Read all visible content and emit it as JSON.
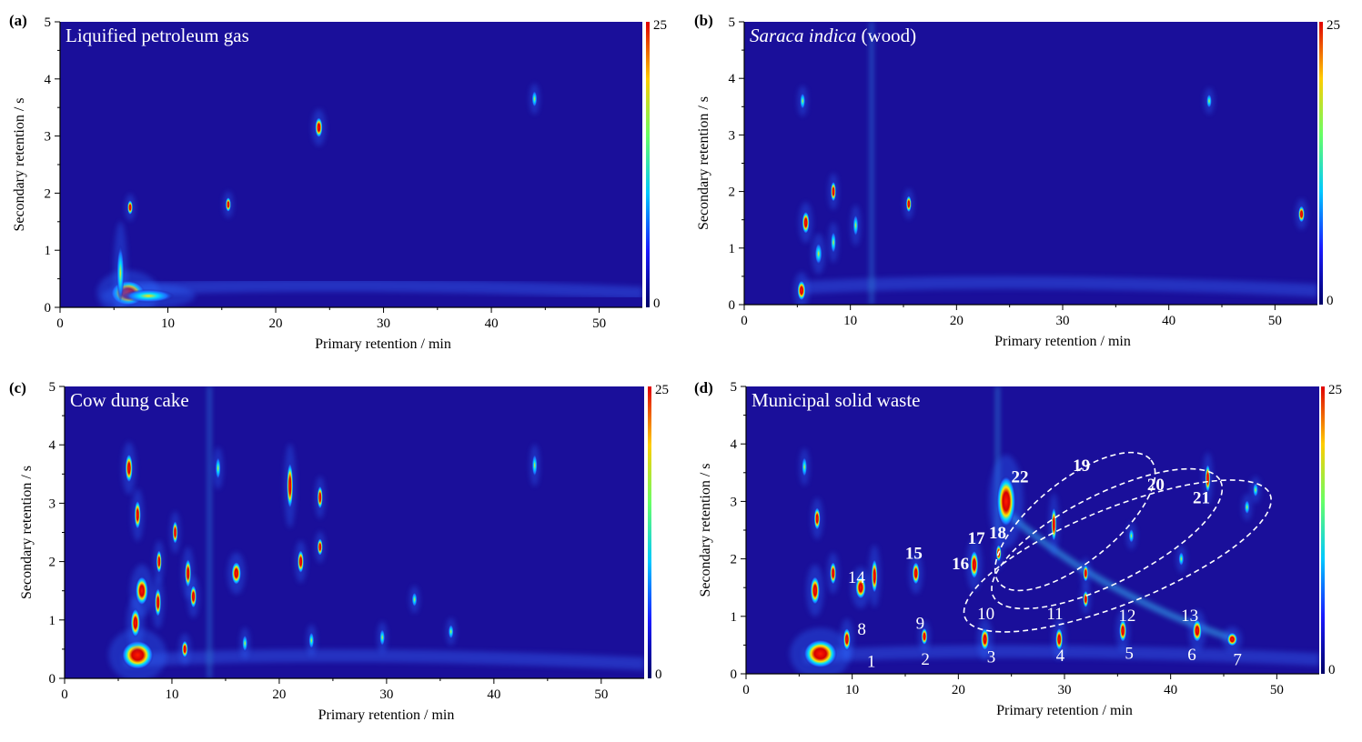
{
  "chart_data": [
    {
      "type": "heatmap",
      "panel_letter": "(a)",
      "title": "Liquified petroleum gas",
      "title_italic_part": "",
      "title_rest": "",
      "xlabel": "Primary retention / min",
      "ylabel": "Secondary retention / s",
      "xlim": [
        0,
        54
      ],
      "ylim": [
        0,
        5
      ],
      "x_ticks": [
        "0",
        "10",
        "20",
        "30",
        "40",
        "50"
      ],
      "y_ticks": [
        "0",
        "1",
        "2",
        "3",
        "4",
        "5"
      ],
      "colorscale": {
        "min": "0",
        "max": "25"
      },
      "background_color": "#1a0f9a",
      "peaks": [
        {
          "x": 6.3,
          "y": 0.25,
          "w": 1.6,
          "h": 0.22,
          "level": 1.0
        },
        {
          "x": 8.2,
          "y": 0.2,
          "w": 2.4,
          "h": 0.12,
          "level": 0.6
        },
        {
          "x": 5.6,
          "y": 0.6,
          "w": 0.35,
          "h": 0.5,
          "level": 0.5
        },
        {
          "x": 6.5,
          "y": 1.75,
          "w": 0.25,
          "h": 0.13,
          "level": 0.8
        },
        {
          "x": 15.6,
          "y": 1.8,
          "w": 0.22,
          "h": 0.13,
          "level": 0.8
        },
        {
          "x": 24.0,
          "y": 3.15,
          "w": 0.35,
          "h": 0.18,
          "level": 0.8
        },
        {
          "x": 44.0,
          "y": 3.65,
          "w": 0.25,
          "h": 0.15,
          "level": 0.6
        }
      ],
      "labels": []
    },
    {
      "type": "heatmap",
      "panel_letter": "(b)",
      "title": "",
      "title_italic_part": "Saraca indica",
      "title_rest": " (wood)",
      "xlabel": "Primary retention / min",
      "ylabel": "Secondary retention / s",
      "xlim": [
        0,
        54
      ],
      "ylim": [
        0,
        5
      ],
      "x_ticks": [
        "0",
        "10",
        "20",
        "30",
        "40",
        "50"
      ],
      "y_ticks": [
        "0",
        "1",
        "2",
        "3",
        "4",
        "5"
      ],
      "colorscale": {
        "min": "0",
        "max": "25"
      },
      "background_color": "#1a0f9a",
      "peaks": [
        {
          "x": 5.4,
          "y": 0.25,
          "w": 0.4,
          "h": 0.18,
          "level": 1.0
        },
        {
          "x": 5.8,
          "y": 1.45,
          "w": 0.35,
          "h": 0.2,
          "level": 0.9
        },
        {
          "x": 5.5,
          "y": 3.6,
          "w": 0.25,
          "h": 0.15,
          "level": 0.6
        },
        {
          "x": 7.0,
          "y": 0.9,
          "w": 0.35,
          "h": 0.2,
          "level": 0.7
        },
        {
          "x": 8.4,
          "y": 2.0,
          "w": 0.25,
          "h": 0.18,
          "level": 0.8
        },
        {
          "x": 8.4,
          "y": 1.1,
          "w": 0.25,
          "h": 0.2,
          "level": 0.7
        },
        {
          "x": 10.5,
          "y": 1.4,
          "w": 0.25,
          "h": 0.2,
          "level": 0.7
        },
        {
          "x": 15.5,
          "y": 1.78,
          "w": 0.22,
          "h": 0.15,
          "level": 0.8
        },
        {
          "x": 43.8,
          "y": 3.6,
          "w": 0.22,
          "h": 0.13,
          "level": 0.5
        },
        {
          "x": 52.5,
          "y": 1.6,
          "w": 0.3,
          "h": 0.15,
          "level": 0.8
        }
      ],
      "labels": []
    },
    {
      "type": "heatmap",
      "panel_letter": "(c)",
      "title": "Cow dung cake",
      "title_italic_part": "",
      "title_rest": "",
      "xlabel": "Primary retention / min",
      "ylabel": "Secondary retention / s",
      "xlim": [
        0,
        54
      ],
      "ylim": [
        0,
        5
      ],
      "x_ticks": [
        "0",
        "10",
        "20",
        "30",
        "40",
        "50"
      ],
      "y_ticks": [
        "0",
        "1",
        "2",
        "3",
        "4",
        "5"
      ],
      "colorscale": {
        "min": "0",
        "max": "25"
      },
      "background_color": "#1a0f9a",
      "peaks": [
        {
          "x": 6.8,
          "y": 0.4,
          "w": 1.5,
          "h": 0.25,
          "level": 1.0
        },
        {
          "x": 6.0,
          "y": 3.6,
          "w": 0.35,
          "h": 0.25,
          "level": 0.9
        },
        {
          "x": 6.8,
          "y": 2.8,
          "w": 0.3,
          "h": 0.25,
          "level": 0.9
        },
        {
          "x": 7.2,
          "y": 1.5,
          "w": 0.6,
          "h": 0.25,
          "level": 0.9
        },
        {
          "x": 6.6,
          "y": 0.95,
          "w": 0.45,
          "h": 0.25,
          "level": 0.9
        },
        {
          "x": 8.7,
          "y": 1.3,
          "w": 0.3,
          "h": 0.25,
          "level": 0.9
        },
        {
          "x": 8.8,
          "y": 2.0,
          "w": 0.25,
          "h": 0.2,
          "level": 0.8
        },
        {
          "x": 10.3,
          "y": 2.5,
          "w": 0.25,
          "h": 0.2,
          "level": 0.8
        },
        {
          "x": 11.5,
          "y": 1.8,
          "w": 0.3,
          "h": 0.25,
          "level": 0.9
        },
        {
          "x": 12.0,
          "y": 1.4,
          "w": 0.3,
          "h": 0.2,
          "level": 0.8
        },
        {
          "x": 11.2,
          "y": 0.5,
          "w": 0.3,
          "h": 0.15,
          "level": 0.8
        },
        {
          "x": 16.0,
          "y": 1.8,
          "w": 0.45,
          "h": 0.2,
          "level": 0.9
        },
        {
          "x": 14.3,
          "y": 3.6,
          "w": 0.22,
          "h": 0.2,
          "level": 0.7
        },
        {
          "x": 21.0,
          "y": 3.3,
          "w": 0.3,
          "h": 0.4,
          "level": 0.8
        },
        {
          "x": 22.0,
          "y": 2.0,
          "w": 0.3,
          "h": 0.2,
          "level": 0.8
        },
        {
          "x": 23.8,
          "y": 3.1,
          "w": 0.22,
          "h": 0.2,
          "level": 0.8
        },
        {
          "x": 23.8,
          "y": 2.25,
          "w": 0.2,
          "h": 0.15,
          "level": 0.8
        },
        {
          "x": 16.8,
          "y": 0.6,
          "w": 0.25,
          "h": 0.15,
          "level": 0.7
        },
        {
          "x": 23.0,
          "y": 0.65,
          "w": 0.25,
          "h": 0.15,
          "level": 0.7
        },
        {
          "x": 29.6,
          "y": 0.7,
          "w": 0.2,
          "h": 0.15,
          "level": 0.7
        },
        {
          "x": 32.6,
          "y": 1.35,
          "w": 0.2,
          "h": 0.13,
          "level": 0.7
        },
        {
          "x": 36.0,
          "y": 0.8,
          "w": 0.2,
          "h": 0.13,
          "level": 0.7
        },
        {
          "x": 43.8,
          "y": 3.65,
          "w": 0.2,
          "h": 0.2,
          "level": 0.7
        }
      ],
      "labels": []
    },
    {
      "type": "heatmap",
      "panel_letter": "(d)",
      "title": "Municipal solid waste",
      "title_italic_part": "",
      "title_rest": "",
      "xlabel": "Primary retention / min",
      "ylabel": "Secondary retention / s",
      "xlim": [
        0,
        54
      ],
      "ylim": [
        0,
        5
      ],
      "x_ticks": [
        "0",
        "10",
        "20",
        "30",
        "40",
        "50"
      ],
      "y_ticks": [
        "0",
        "1",
        "2",
        "3",
        "4",
        "5"
      ],
      "colorscale": {
        "min": "0",
        "max": "25"
      },
      "background_color": "#1a0f9a",
      "peaks": [
        {
          "x": 7.0,
          "y": 0.35,
          "w": 1.6,
          "h": 0.25,
          "level": 1.0
        },
        {
          "x": 6.5,
          "y": 1.45,
          "w": 0.45,
          "h": 0.25,
          "level": 0.9
        },
        {
          "x": 6.7,
          "y": 2.7,
          "w": 0.3,
          "h": 0.2,
          "level": 0.9
        },
        {
          "x": 5.5,
          "y": 3.6,
          "w": 0.25,
          "h": 0.18,
          "level": 0.7
        },
        {
          "x": 8.2,
          "y": 1.75,
          "w": 0.3,
          "h": 0.2,
          "level": 0.9
        },
        {
          "x": 9.5,
          "y": 0.6,
          "w": 0.35,
          "h": 0.2,
          "level": 0.9
        },
        {
          "x": 10.8,
          "y": 1.5,
          "w": 0.5,
          "h": 0.2,
          "level": 0.9
        },
        {
          "x": 12.1,
          "y": 1.7,
          "w": 0.3,
          "h": 0.3,
          "level": 0.9
        },
        {
          "x": 16.0,
          "y": 1.75,
          "w": 0.35,
          "h": 0.2,
          "level": 0.9
        },
        {
          "x": 16.8,
          "y": 0.65,
          "w": 0.3,
          "h": 0.15,
          "level": 0.8
        },
        {
          "x": 21.5,
          "y": 1.9,
          "w": 0.4,
          "h": 0.25,
          "level": 0.9
        },
        {
          "x": 24.5,
          "y": 3.0,
          "w": 0.9,
          "h": 0.45,
          "level": 1.0
        },
        {
          "x": 23.8,
          "y": 2.1,
          "w": 0.25,
          "h": 0.15,
          "level": 0.8
        },
        {
          "x": 22.5,
          "y": 0.6,
          "w": 0.4,
          "h": 0.2,
          "level": 0.9
        },
        {
          "x": 29.5,
          "y": 0.6,
          "w": 0.35,
          "h": 0.2,
          "level": 0.9
        },
        {
          "x": 29.0,
          "y": 2.6,
          "w": 0.2,
          "h": 0.3,
          "level": 0.9
        },
        {
          "x": 32.0,
          "y": 1.75,
          "w": 0.22,
          "h": 0.15,
          "level": 0.8
        },
        {
          "x": 32.0,
          "y": 1.3,
          "w": 0.2,
          "h": 0.15,
          "level": 0.8
        },
        {
          "x": 35.5,
          "y": 0.75,
          "w": 0.35,
          "h": 0.2,
          "level": 0.8
        },
        {
          "x": 36.3,
          "y": 2.4,
          "w": 0.2,
          "h": 0.13,
          "level": 0.7
        },
        {
          "x": 42.5,
          "y": 0.75,
          "w": 0.45,
          "h": 0.2,
          "level": 0.9
        },
        {
          "x": 45.8,
          "y": 0.6,
          "w": 0.5,
          "h": 0.12,
          "level": 1.0
        },
        {
          "x": 43.5,
          "y": 3.4,
          "w": 0.22,
          "h": 0.25,
          "level": 0.8
        },
        {
          "x": 41.0,
          "y": 2.0,
          "w": 0.2,
          "h": 0.13,
          "level": 0.7
        },
        {
          "x": 48.0,
          "y": 3.2,
          "w": 0.2,
          "h": 0.13,
          "level": 0.7
        },
        {
          "x": 47.2,
          "y": 2.9,
          "w": 0.2,
          "h": 0.13,
          "level": 0.7
        }
      ],
      "labels": [
        {
          "text": "1",
          "x": 11.8,
          "y": 0.12,
          "bold": false
        },
        {
          "text": "2",
          "x": 16.9,
          "y": 0.16,
          "bold": false
        },
        {
          "text": "3",
          "x": 23.1,
          "y": 0.2,
          "bold": false
        },
        {
          "text": "4",
          "x": 29.6,
          "y": 0.22,
          "bold": false
        },
        {
          "text": "5",
          "x": 36.1,
          "y": 0.26,
          "bold": false
        },
        {
          "text": "6",
          "x": 42.0,
          "y": 0.24,
          "bold": false
        },
        {
          "text": "7",
          "x": 46.3,
          "y": 0.15,
          "bold": false
        },
        {
          "text": "8",
          "x": 10.9,
          "y": 0.68,
          "bold": false
        },
        {
          "text": "9",
          "x": 16.4,
          "y": 0.78,
          "bold": false
        },
        {
          "text": "10",
          "x": 22.6,
          "y": 0.95,
          "bold": false
        },
        {
          "text": "11",
          "x": 29.1,
          "y": 0.95,
          "bold": false
        },
        {
          "text": "12",
          "x": 35.9,
          "y": 0.92,
          "bold": false
        },
        {
          "text": "13",
          "x": 41.8,
          "y": 0.92,
          "bold": false
        },
        {
          "text": "14",
          "x": 10.4,
          "y": 1.58,
          "bold": false
        },
        {
          "text": "15",
          "x": 15.8,
          "y": 2.0,
          "bold": true
        },
        {
          "text": "16",
          "x": 20.2,
          "y": 1.82,
          "bold": true
        },
        {
          "text": "17",
          "x": 21.7,
          "y": 2.26,
          "bold": true
        },
        {
          "text": "18",
          "x": 23.7,
          "y": 2.36,
          "bold": true
        },
        {
          "text": "22",
          "x": 25.8,
          "y": 3.33,
          "bold": true
        },
        {
          "text": "19",
          "x": 31.6,
          "y": 3.53,
          "bold": true
        },
        {
          "text": "20",
          "x": 38.6,
          "y": 3.2,
          "bold": true
        },
        {
          "text": "21",
          "x": 42.9,
          "y": 2.97,
          "bold": true
        }
      ],
      "ellipses": [
        {
          "cx": 31.0,
          "cy": 2.65,
          "rx": 9.2,
          "ry": 0.22,
          "angle_deg": -39
        },
        {
          "cx": 34.0,
          "cy": 2.35,
          "rx": 12.0,
          "ry": 0.24,
          "angle_deg": -27
        },
        {
          "cx": 35.0,
          "cy": 2.05,
          "rx": 15.5,
          "ry": 0.26,
          "angle_deg": -22
        }
      ]
    }
  ]
}
